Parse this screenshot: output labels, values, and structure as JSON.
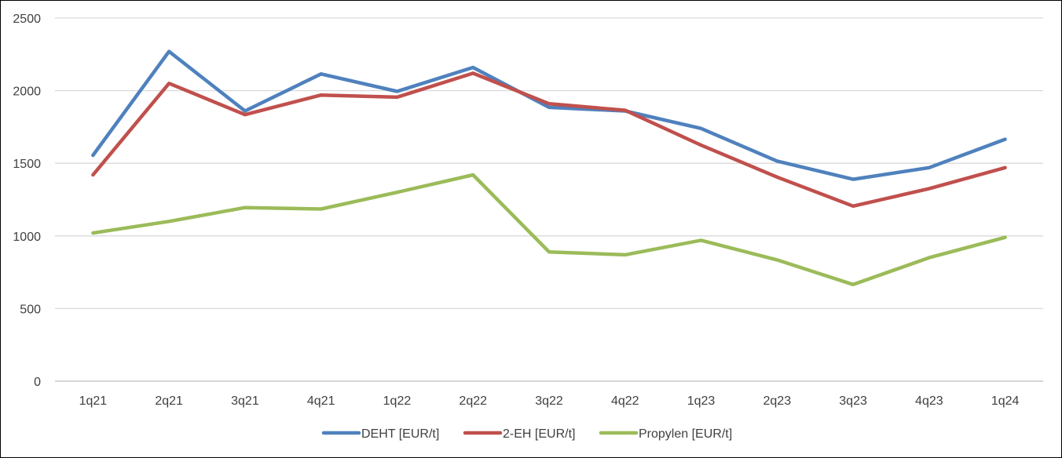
{
  "chart_data": {
    "type": "line",
    "title": "",
    "xlabel": "",
    "ylabel": "",
    "categories": [
      "1q21",
      "2q21",
      "3q21",
      "4q21",
      "1q22",
      "2q22",
      "3q22",
      "4q22",
      "1q23",
      "2q23",
      "3q23",
      "4q23",
      "1q24"
    ],
    "ylim": [
      0,
      2500
    ],
    "yticks": [
      0,
      500,
      1000,
      1500,
      2000,
      2500
    ],
    "grid": true,
    "legend_position": "bottom",
    "series": [
      {
        "name": "DEHT [EUR/t]",
        "color": "#4f81bd",
        "values": [
          1555,
          2270,
          1860,
          2115,
          1995,
          2160,
          1885,
          1860,
          1740,
          1515,
          1390,
          1470,
          1665
        ]
      },
      {
        "name": "2-EH [EUR/t]",
        "color": "#c0504d",
        "values": [
          1420,
          2050,
          1835,
          1970,
          1955,
          2120,
          1910,
          1865,
          1625,
          1405,
          1205,
          1325,
          1470
        ]
      },
      {
        "name": "Propylen [EUR/t]",
        "color": "#9bbb59",
        "values": [
          1020,
          1100,
          1195,
          1185,
          1300,
          1420,
          890,
          870,
          970,
          835,
          665,
          850,
          990
        ]
      }
    ]
  }
}
